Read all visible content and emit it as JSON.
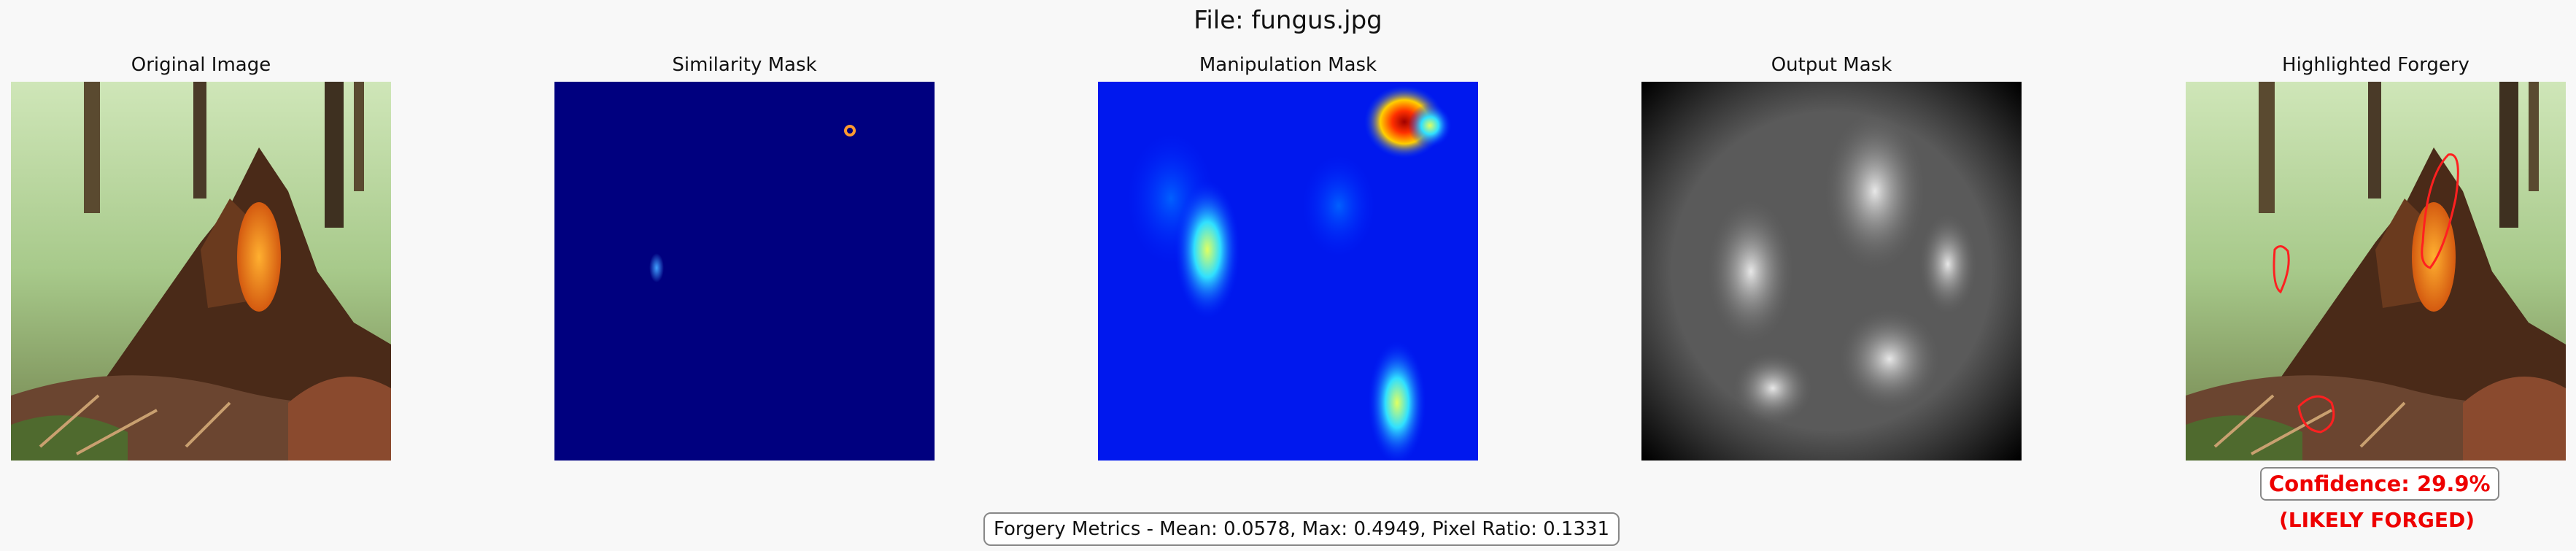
{
  "suptitle": "File: fungus.jpg",
  "panels": [
    {
      "title": "Original Image",
      "image": "forest stump photo with orange fungus"
    },
    {
      "title": "Similarity Mask",
      "image": "dark blue mask with small hotspots"
    },
    {
      "title": "Manipulation Mask",
      "image": "jet colormap heatmap"
    },
    {
      "title": "Output Mask",
      "image": "grayscale blurred mask"
    },
    {
      "title": "Highlighted Forgery",
      "image": "photo with red outlined regions"
    }
  ],
  "confidence": "Confidence: 29.9%",
  "verdict": "(LIKELY FORGED)",
  "metrics": "Forgery Metrics - Mean: 0.0578, Max: 0.4949, Pixel Ratio: 0.1331",
  "colors": {
    "background": "#f8f8f8",
    "alert": "#e00000",
    "mask_base": "#00007f",
    "outline": "#ff2020"
  }
}
